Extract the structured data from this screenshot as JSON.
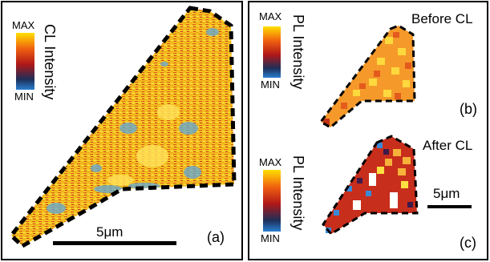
{
  "panel_a": {
    "colorbar": {
      "max": "MAX",
      "min": "MIN",
      "label": "CL Intensity"
    },
    "scale_bar": "5μm",
    "panel_label": "(a)"
  },
  "panel_b": {
    "colorbar": {
      "max": "MAX",
      "min": "MIN",
      "label": "PL Intensity"
    },
    "caption": "Before CL",
    "panel_label": "(b)"
  },
  "panel_c": {
    "colorbar": {
      "max": "MAX",
      "min": "MIN",
      "label": "PL Intensity"
    },
    "caption": "After CL",
    "scale_bar": "5μm",
    "panel_label": "(c)"
  },
  "colormap": [
    "#2a7fd0",
    "#1d2f5a",
    "#b01818",
    "#f06010",
    "#ffe000"
  ]
}
